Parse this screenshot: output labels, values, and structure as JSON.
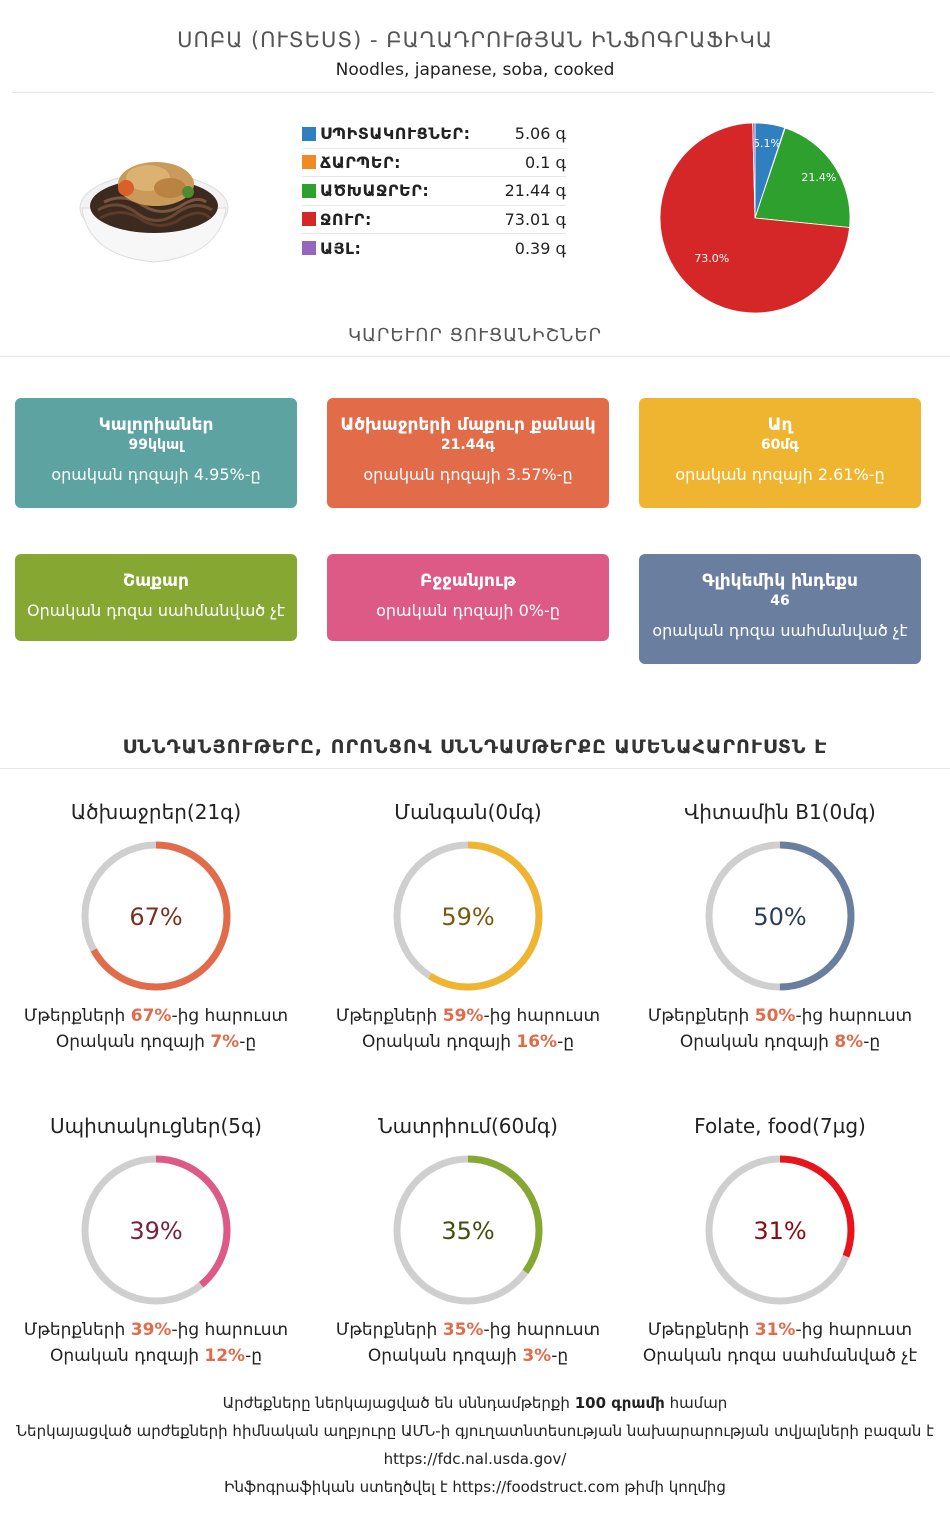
{
  "header": {
    "title": "ՍՈԲԱ (ՈՒՏԵՍՏ) - ԲԱՂԱԴՐՈՒԹՅԱՆ ԻՆՖՈԳՐԱՖԻԿԱ",
    "subtitle": "Noodles, japanese, soba, cooked"
  },
  "composition": [
    {
      "label": "ՍՊԻՏԱԿՈՒՑՆԵՐ:",
      "value": "5.06 գ",
      "color": "#2f7fc1"
    },
    {
      "label": "ՃԱՐՊԵՐ:",
      "value": "0.1 գ",
      "color": "#f08a24"
    },
    {
      "label": "ԱԾԽԱՋՐԵՐ:",
      "value": "21.44 գ",
      "color": "#2ea02e"
    },
    {
      "label": "ՋՈՒՐ:",
      "value": "73.01 գ",
      "color": "#d62728"
    },
    {
      "label": "ԱՅԼ:",
      "value": "0.39 գ",
      "color": "#9467bd"
    }
  ],
  "chart_data": {
    "type": "pie",
    "slices": [
      {
        "label": "Protein",
        "value": 5.06,
        "color": "#2f7fc1",
        "text": "5.1%"
      },
      {
        "label": "Fat",
        "value": 0.1,
        "color": "#f08a24",
        "text": ""
      },
      {
        "label": "Carbs",
        "value": 21.44,
        "color": "#2ea02e",
        "text": "21.4%"
      },
      {
        "label": "Water",
        "value": 73.01,
        "color": "#d62728",
        "text": "73.0%"
      },
      {
        "label": "Other",
        "value": 0.39,
        "color": "#9467bd",
        "text": ""
      }
    ]
  },
  "key_section": {
    "title": "ԿԱՐԵՒՈՐ ՑՈՒՑԱՆԻՇՆԵՐ"
  },
  "cards": [
    {
      "title": "Կալորիաներ",
      "amount": "99կկալ",
      "daily": "օրական դոզայի 4.95%-ը",
      "color": "#5da3a2"
    },
    {
      "title": "Ածխաջրերի մաքուր քանակ",
      "amount": "21.44գ",
      "daily": "օրական դոզայի 3.57%-ը",
      "color": "#e26c4a"
    },
    {
      "title": "Աղ",
      "amount": "60մգ",
      "daily": "օրական դոզայի 2.61%-ը",
      "color": "#f0b530"
    },
    {
      "title": "Շաքար",
      "amount": "",
      "daily": "Օրական դոզա սահմանված չէ",
      "color": "#86a833"
    },
    {
      "title": "Բջջանյութ",
      "amount": "",
      "daily": "օրական դոզայի 0%-ը",
      "color": "#dd5a86"
    },
    {
      "title": "Գլիկեմիկ ինդեքս",
      "amount": "46",
      "daily": "օրական դոզա սահմանված չէ",
      "color": "#6a7fa0"
    }
  ],
  "rich_section": {
    "title": "ՍՆՆԴԱՆՅՈՒԹԵՐԸ, ՈՐՈՆՑՈՎ ՍՆՆԴԱՄԹԵՐՔԸ ԱՄԵՆԱՀԱՐՈՒՍՏՆ Է"
  },
  "rings": [
    {
      "title": "Ածխաջրեր(21գ)",
      "percent": 67,
      "percent_text": "67%",
      "color": "#e26c4a",
      "text_color": "#7a3220",
      "l1_pre": "Մթերքների ",
      "l1_hl": "67%",
      "l1_post": "-ից հարուստ",
      "l2_pre": "Օրական դոզայի ",
      "l2_hl": "7%",
      "l2_post": "-ը"
    },
    {
      "title": "Մանգան(0մգ)",
      "percent": 59,
      "percent_text": "59%",
      "color": "#f0b530",
      "text_color": "#7a5a10",
      "l1_pre": "Մթերքների ",
      "l1_hl": "59%",
      "l1_post": "-ից հարուստ",
      "l2_pre": "Օրական դոզայի ",
      "l2_hl": "16%",
      "l2_post": "-ը"
    },
    {
      "title": "Վիտամին B1(0մգ)",
      "percent": 50,
      "percent_text": "50%",
      "color": "#6a7fa0",
      "text_color": "#2e3e5a",
      "l1_pre": "Մթերքների ",
      "l1_hl": "50%",
      "l1_post": "-ից հարուստ",
      "l2_pre": "Օրական դոզայի ",
      "l2_hl": "8%",
      "l2_post": "-ը"
    },
    {
      "title": "Սպիտակուցներ(5գ)",
      "percent": 39,
      "percent_text": "39%",
      "color": "#dd5a86",
      "text_color": "#7a2040",
      "l1_pre": "Մթերքների ",
      "l1_hl": "39%",
      "l1_post": "-ից հարուստ",
      "l2_pre": "Օրական դոզայի ",
      "l2_hl": "12%",
      "l2_post": "-ը"
    },
    {
      "title": "Նատրիում(60մգ)",
      "percent": 35,
      "percent_text": "35%",
      "color": "#86a833",
      "text_color": "#3e5010",
      "l1_pre": "Մթերքների ",
      "l1_hl": "35%",
      "l1_post": "-ից հարուստ",
      "l2_pre": "Օրական դոզայի ",
      "l2_hl": "3%",
      "l2_post": "-ը"
    },
    {
      "title": "Folate, food(7µg)",
      "percent": 31,
      "percent_text": "31%",
      "color": "#e8141c",
      "text_color": "#8a0a10",
      "l1_pre": "Մթերքների ",
      "l1_hl": "31%",
      "l1_post": "-ից հարուստ",
      "l2_pre": "Օրական դոզա սահմանված չէ",
      "l2_hl": "",
      "l2_post": ""
    }
  ],
  "footer": {
    "line1_pre": "Արժեքները ներկայացված են սննդամթերքի ",
    "line1_bold": "100 գրամի",
    "line1_post": " համար",
    "line2": "Ներկայացված արժեքների հիմնական աղբյուրը ԱՄՆ-ի գյուղատնտեսության նախարարության տվյալների բազան է",
    "line3": "https://fdc.nal.usda.gov/",
    "line4_pre": "Ինֆոգրաֆիկան ստեղծվել է ",
    "line4_link": "https://foodstruct.com",
    "line4_post": " թիմի կողմից"
  }
}
